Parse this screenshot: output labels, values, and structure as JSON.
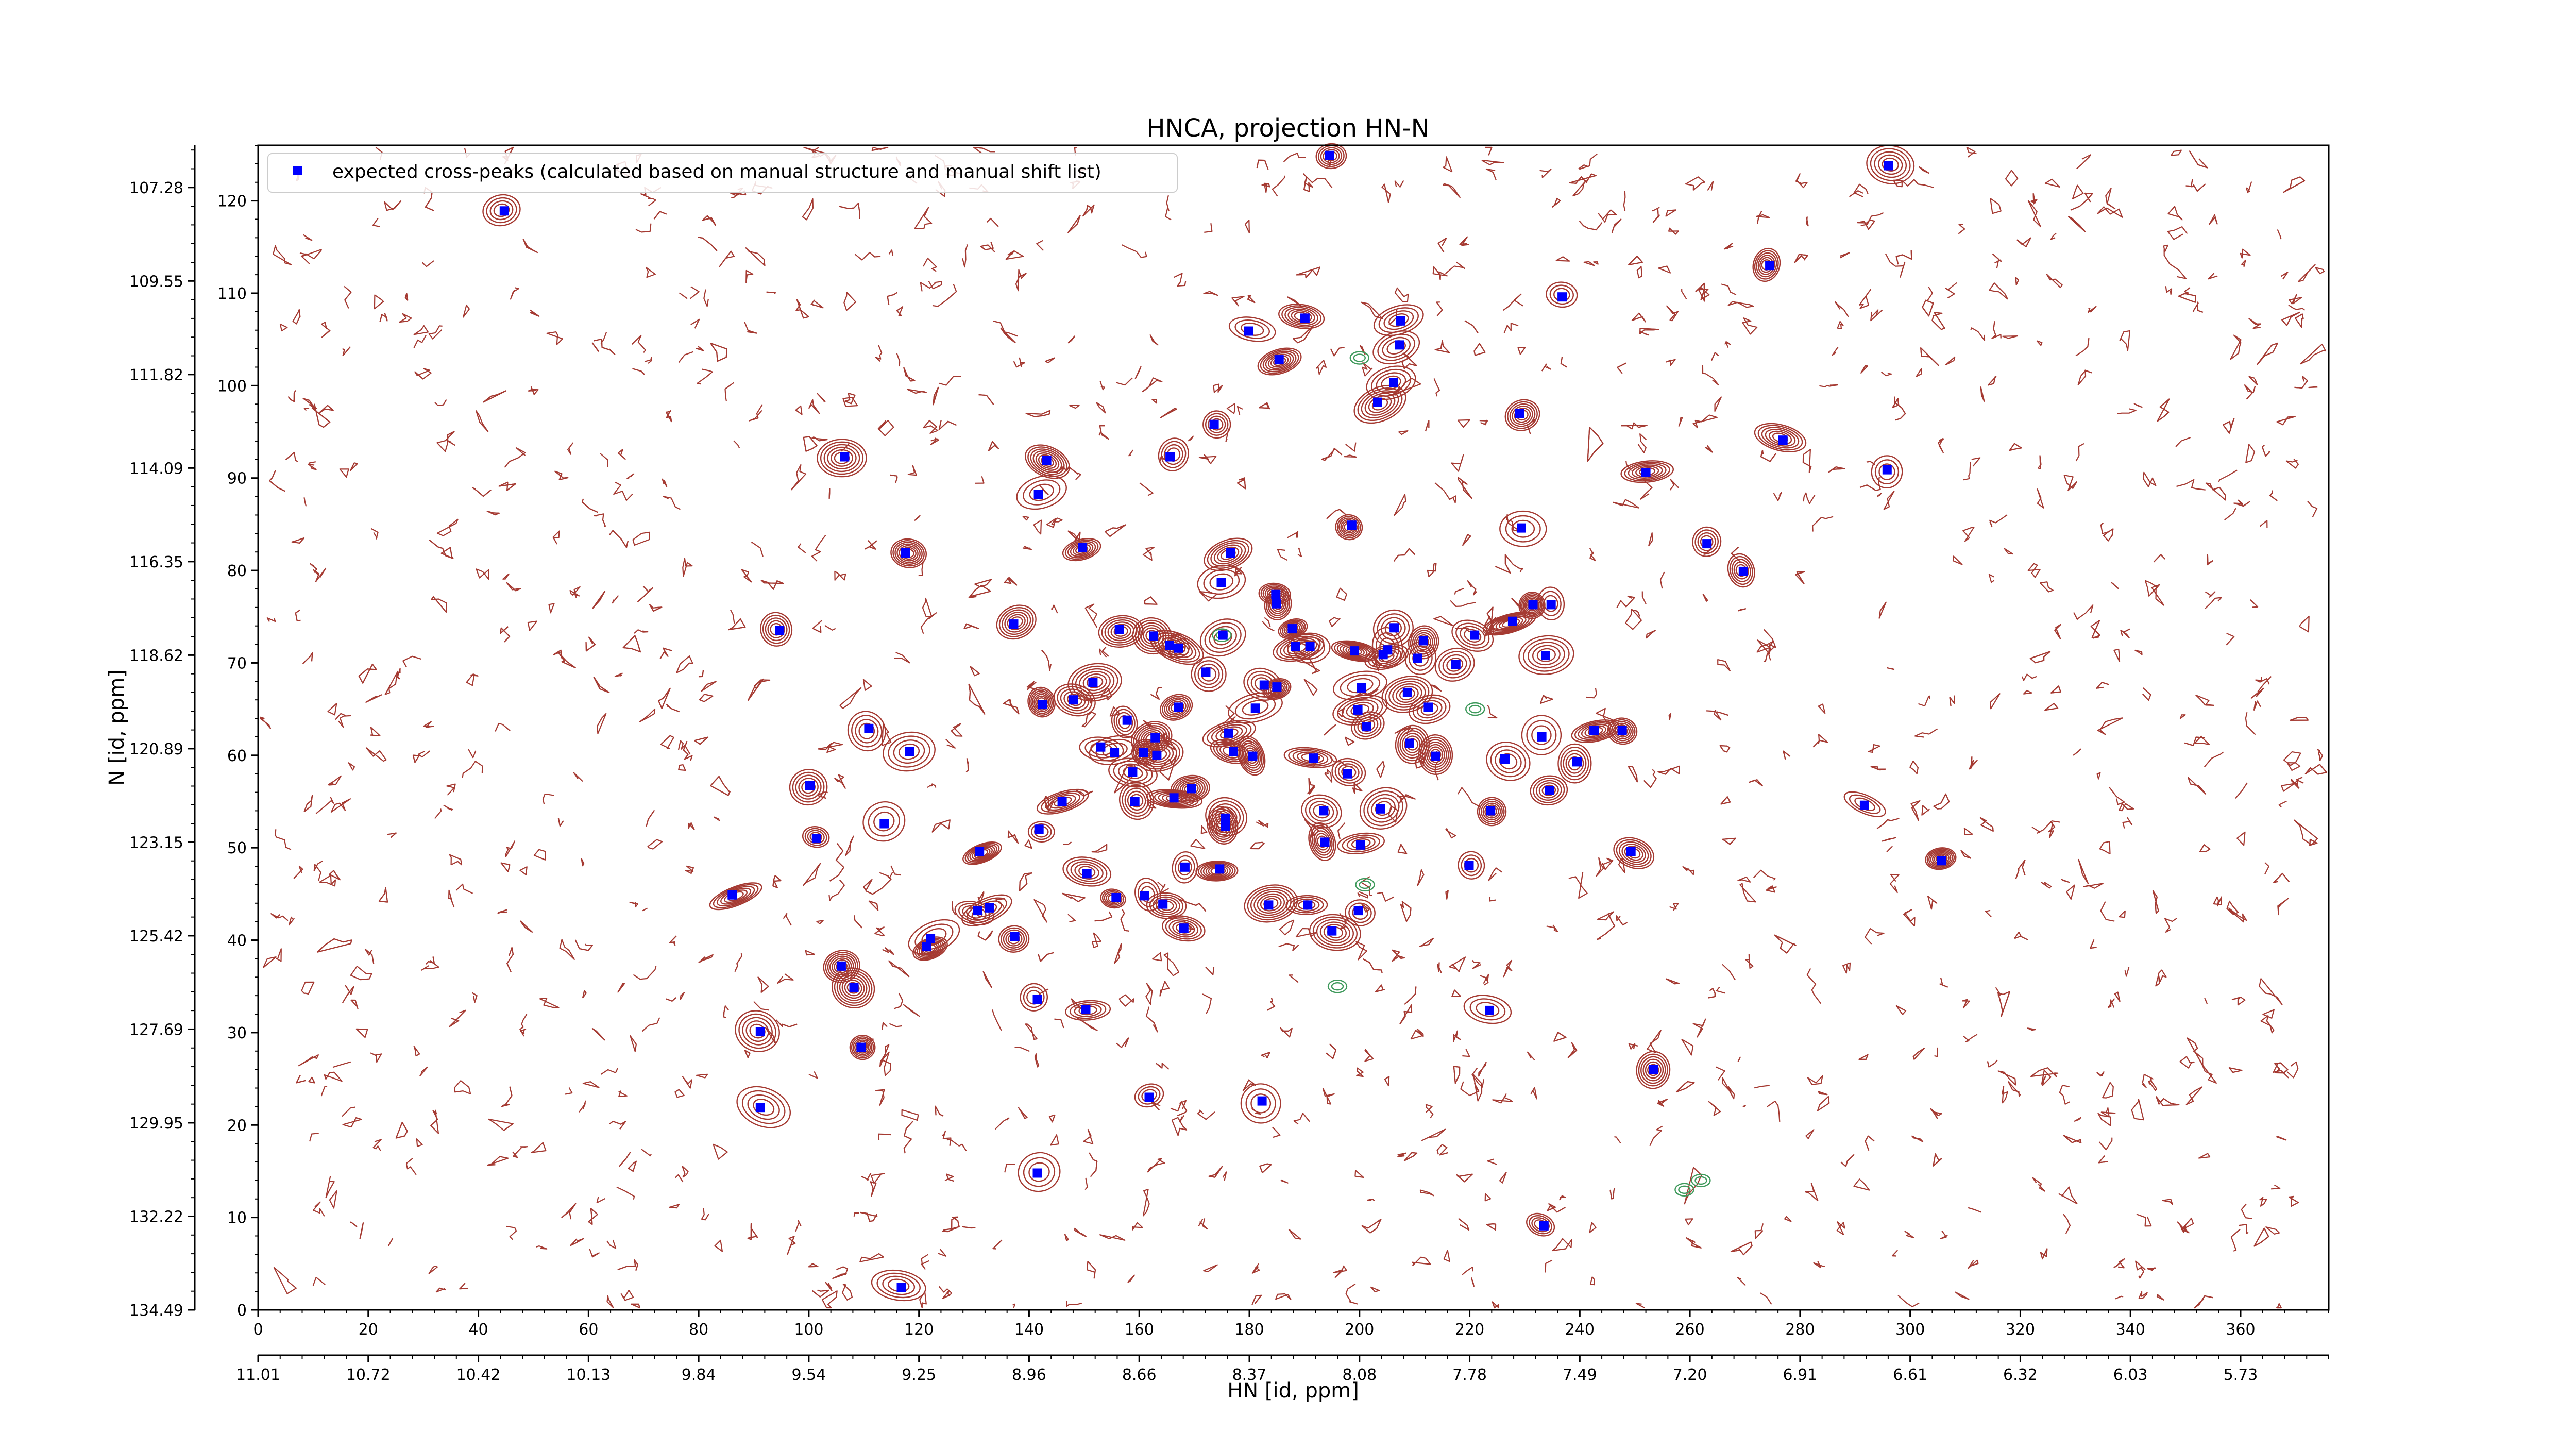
{
  "chart_data": {
    "type": "scatter",
    "title": "HNCA, projection HN-N",
    "xlabel": "HN [id, ppm]",
    "ylabel": "N [id, ppm]",
    "xlim": [
      0,
      376
    ],
    "ylim": [
      0,
      126
    ],
    "x_ticks": [
      0,
      20,
      40,
      60,
      80,
      100,
      120,
      140,
      160,
      180,
      200,
      220,
      240,
      260,
      280,
      300,
      320,
      340,
      360
    ],
    "y_ticks": [
      0,
      10,
      20,
      30,
      40,
      50,
      60,
      70,
      80,
      90,
      100,
      110,
      120
    ],
    "x_ppm_ticks": [
      {
        "x": 0,
        "label": "11.01"
      },
      {
        "x": 20,
        "label": "10.72"
      },
      {
        "x": 40,
        "label": "10.42"
      },
      {
        "x": 60,
        "label": "10.13"
      },
      {
        "x": 80,
        "label": "9.84"
      },
      {
        "x": 100,
        "label": "9.54"
      },
      {
        "x": 120,
        "label": "9.25"
      },
      {
        "x": 140,
        "label": "8.96"
      },
      {
        "x": 160,
        "label": "8.66"
      },
      {
        "x": 180,
        "label": "8.37"
      },
      {
        "x": 200,
        "label": "8.08"
      },
      {
        "x": 220,
        "label": "7.78"
      },
      {
        "x": 240,
        "label": "7.49"
      },
      {
        "x": 260,
        "label": "7.20"
      },
      {
        "x": 280,
        "label": "6.91"
      },
      {
        "x": 300,
        "label": "6.61"
      },
      {
        "x": 320,
        "label": "6.32"
      },
      {
        "x": 340,
        "label": "6.03"
      },
      {
        "x": 360,
        "label": "5.73"
      }
    ],
    "y_ppm_ticks": [
      {
        "y": 0,
        "label": "134.49"
      },
      {
        "y": 10.12,
        "label": "132.22"
      },
      {
        "y": 20.24,
        "label": "129.95"
      },
      {
        "y": 30.36,
        "label": "127.69"
      },
      {
        "y": 40.48,
        "label": "125.42"
      },
      {
        "y": 50.6,
        "label": "123.15"
      },
      {
        "y": 60.72,
        "label": "120.89"
      },
      {
        "y": 70.84,
        "label": "118.62"
      },
      {
        "y": 80.96,
        "label": "116.35"
      },
      {
        "y": 91.08,
        "label": "114.09"
      },
      {
        "y": 101.2,
        "label": "111.82"
      },
      {
        "y": 111.32,
        "label": "109.55"
      },
      {
        "y": 121.44,
        "label": "107.28"
      }
    ],
    "legend": {
      "position": "upper-left",
      "entries": [
        {
          "label": "expected cross-peaks (calculated based on manual structure and manual shift list)",
          "color": "#0000ff",
          "marker": "square"
        }
      ]
    },
    "series": [
      {
        "marker": "square",
        "color": "#0000ff",
        "points": [
          [
            44.7,
            118.9
          ],
          [
            194.6,
            124.9
          ],
          [
            296.1,
            123.8
          ],
          [
            274.5,
            113.0
          ],
          [
            236.8,
            109.6
          ],
          [
            190.1,
            107.3
          ],
          [
            207.5,
            107.0
          ],
          [
            179.9,
            105.9
          ],
          [
            207.3,
            104.4
          ],
          [
            185.4,
            102.8
          ],
          [
            206.2,
            100.3
          ],
          [
            203.3,
            98.2
          ],
          [
            229.1,
            97.0
          ],
          [
            173.6,
            95.8
          ],
          [
            276.9,
            94.1
          ],
          [
            106.5,
            92.3
          ],
          [
            165.6,
            92.3
          ],
          [
            143.2,
            91.9
          ],
          [
            252.0,
            90.6
          ],
          [
            295.8,
            90.9
          ],
          [
            141.7,
            88.2
          ],
          [
            229.4,
            84.6
          ],
          [
            198.6,
            84.9
          ],
          [
            263.1,
            82.9
          ],
          [
            149.7,
            82.5
          ],
          [
            117.6,
            81.9
          ],
          [
            176.6,
            81.9
          ],
          [
            269.7,
            79.9
          ],
          [
            174.9,
            78.7
          ],
          [
            184.8,
            77.4
          ],
          [
            184.9,
            76.4
          ],
          [
            231.5,
            76.3
          ],
          [
            234.8,
            76.3
          ],
          [
            227.8,
            74.5
          ],
          [
            137.2,
            74.2
          ],
          [
            94.7,
            73.5
          ],
          [
            156.4,
            73.6
          ],
          [
            175.2,
            73.0
          ],
          [
            206.3,
            73.8
          ],
          [
            187.8,
            73.7
          ],
          [
            162.6,
            72.9
          ],
          [
            211.6,
            72.4
          ],
          [
            165.5,
            71.9
          ],
          [
            167.1,
            71.6
          ],
          [
            188.4,
            71.8
          ],
          [
            191.0,
            71.8
          ],
          [
            220.9,
            73.0
          ],
          [
            199.1,
            71.3
          ],
          [
            204.3,
            70.9
          ],
          [
            205.1,
            71.4
          ],
          [
            210.5,
            70.5
          ],
          [
            217.5,
            69.8
          ],
          [
            233.8,
            70.8
          ],
          [
            172.1,
            69.0
          ],
          [
            151.6,
            67.9
          ],
          [
            182.7,
            67.6
          ],
          [
            185.0,
            67.4
          ],
          [
            200.3,
            67.3
          ],
          [
            208.7,
            66.8
          ],
          [
            148.1,
            66.0
          ],
          [
            142.4,
            65.5
          ],
          [
            212.5,
            65.2
          ],
          [
            167.1,
            65.2
          ],
          [
            181.1,
            65.1
          ],
          [
            199.7,
            64.9
          ],
          [
            157.8,
            63.8
          ],
          [
            201.3,
            63.1
          ],
          [
            110.9,
            62.9
          ],
          [
            162.9,
            61.9
          ],
          [
            176.2,
            62.4
          ],
          [
            233.1,
            62.0
          ],
          [
            242.6,
            62.7
          ],
          [
            247.7,
            62.7
          ],
          [
            153.0,
            60.9
          ],
          [
            160.8,
            60.3
          ],
          [
            163.2,
            60.0
          ],
          [
            155.5,
            60.3
          ],
          [
            177.1,
            60.4
          ],
          [
            180.6,
            59.9
          ],
          [
            213.8,
            59.9
          ],
          [
            191.6,
            59.7
          ],
          [
            209.1,
            61.3
          ],
          [
            197.8,
            58.0
          ],
          [
            239.5,
            59.3
          ],
          [
            158.8,
            58.2
          ],
          [
            226.4,
            59.6
          ],
          [
            118.3,
            60.4
          ],
          [
            100.2,
            56.7
          ],
          [
            169.5,
            56.4
          ],
          [
            234.5,
            56.2
          ],
          [
            146.0,
            55.0
          ],
          [
            159.2,
            55.0
          ],
          [
            166.3,
            55.4
          ],
          [
            193.5,
            54.0
          ],
          [
            203.8,
            54.2
          ],
          [
            223.8,
            54.0
          ],
          [
            175.6,
            53.2
          ],
          [
            175.6,
            52.3
          ],
          [
            113.7,
            52.6
          ],
          [
            291.7,
            54.6
          ],
          [
            141.8,
            52.0
          ],
          [
            101.4,
            51.0
          ],
          [
            193.7,
            50.6
          ],
          [
            200.2,
            50.3
          ],
          [
            131.0,
            49.6
          ],
          [
            249.3,
            49.6
          ],
          [
            219.9,
            48.1
          ],
          [
            305.7,
            48.6
          ],
          [
            168.3,
            47.9
          ],
          [
            150.5,
            47.2
          ],
          [
            174.6,
            47.7
          ],
          [
            86.1,
            44.9
          ],
          [
            155.8,
            44.6
          ],
          [
            161.0,
            44.8
          ],
          [
            183.5,
            43.8
          ],
          [
            164.3,
            43.9
          ],
          [
            190.6,
            43.8
          ],
          [
            130.7,
            43.2
          ],
          [
            132.8,
            43.5
          ],
          [
            199.8,
            43.2
          ],
          [
            137.4,
            40.4
          ],
          [
            168.1,
            41.3
          ],
          [
            195.0,
            41.0
          ],
          [
            122.1,
            40.2
          ],
          [
            121.4,
            39.3
          ],
          [
            105.9,
            37.2
          ],
          [
            108.2,
            34.9
          ],
          [
            141.5,
            33.6
          ],
          [
            150.3,
            32.5
          ],
          [
            223.6,
            32.4
          ],
          [
            91.2,
            30.1
          ],
          [
            109.5,
            28.4
          ],
          [
            253.4,
            26.0
          ],
          [
            161.8,
            23.0
          ],
          [
            182.3,
            22.6
          ],
          [
            91.2,
            21.9
          ],
          [
            141.5,
            14.8
          ],
          [
            233.5,
            9.1
          ],
          [
            116.8,
            2.4
          ]
        ]
      }
    ]
  },
  "contour_colors": {
    "positive": "#a53a32",
    "negative": "#3f9a5c"
  }
}
